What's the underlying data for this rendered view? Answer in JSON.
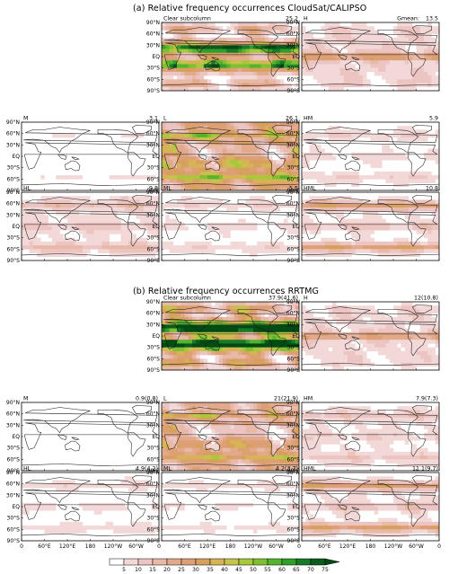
{
  "figure": {
    "title_a": "(a)  Relative frequency occurrences CloudSat/CALIPSO",
    "title_b": "(b)  Relative frequency occurrences RRTMG"
  },
  "chart_data": {
    "type": "heatmap",
    "lat_ticks": [
      "90°N",
      "60°N",
      "30°N",
      "EQ",
      "30°S",
      "60°S",
      "90°S"
    ],
    "lon_ticks": [
      "0",
      "60°E",
      "120°E",
      "180",
      "120°W",
      "60°W",
      "0"
    ],
    "colorbar": {
      "levels": [
        "5",
        "10",
        "15",
        "20",
        "25",
        "30",
        "35",
        "40",
        "45",
        "50",
        "55",
        "60",
        "65",
        "70",
        "75"
      ],
      "colors": [
        "#f3d8d8",
        "#ecc5c3",
        "#e8b9a6",
        "#e2a98a",
        "#dd9f74",
        "#d8a05f",
        "#d6b456",
        "#c6c24b",
        "#a6c83a",
        "#7fc033",
        "#55b42c",
        "#2f9e2b",
        "#177a26",
        "#0b5a1e",
        "#004a14"
      ]
    },
    "panels": [
      {
        "id": "a-clear",
        "label": "Clear subcolumn",
        "value": "25.2",
        "mean": 25.2,
        "gmean_label": ""
      },
      {
        "id": "a-h",
        "label": "H",
        "value": "13.5",
        "mean": 13.5,
        "gmean_label": "Gmean:"
      },
      {
        "id": "a-m",
        "label": "M",
        "value": "3.1",
        "mean": 3.1,
        "gmean_label": ""
      },
      {
        "id": "a-l",
        "label": "L",
        "value": "26.1",
        "mean": 26.1,
        "gmean_label": ""
      },
      {
        "id": "a-hm",
        "label": "HM",
        "value": "5.9",
        "mean": 5.9,
        "gmean_label": ""
      },
      {
        "id": "a-hl",
        "label": "HL",
        "value": "9.8",
        "mean": 9.8,
        "gmean_label": ""
      },
      {
        "id": "a-ml",
        "label": "ML",
        "value": "5.5",
        "mean": 5.5,
        "gmean_label": ""
      },
      {
        "id": "a-hml",
        "label": "HML",
        "value": "10.8",
        "mean": 10.8,
        "gmean_label": ""
      },
      {
        "id": "b-clear",
        "label": "Clear subcolumn",
        "value": "37.9(41.6)",
        "mean": 37.9,
        "gmean_label": ""
      },
      {
        "id": "b-h",
        "label": "H",
        "value": "12(10.8)",
        "mean": 12.0,
        "gmean_label": ""
      },
      {
        "id": "b-m",
        "label": "M",
        "value": "0.9(0.8)",
        "mean": 0.9,
        "gmean_label": ""
      },
      {
        "id": "b-l",
        "label": "L",
        "value": "21(21.9)",
        "mean": 21.0,
        "gmean_label": ""
      },
      {
        "id": "b-hm",
        "label": "HM",
        "value": "7.9(7.3)",
        "mean": 7.9,
        "gmean_label": ""
      },
      {
        "id": "b-hl",
        "label": "HL",
        "value": "4.9(4.2)",
        "mean": 4.9,
        "gmean_label": ""
      },
      {
        "id": "b-ml",
        "label": "ML",
        "value": "4.2(3.7)",
        "mean": 4.2,
        "gmean_label": ""
      },
      {
        "id": "b-hml",
        "label": "HML",
        "value": "11.1(9.7)",
        "mean": 11.1,
        "gmean_label": ""
      }
    ]
  }
}
